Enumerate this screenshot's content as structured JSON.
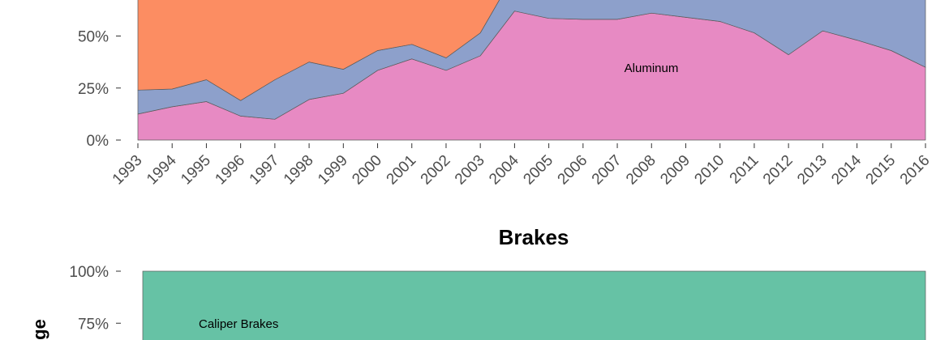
{
  "chart_data": [
    {
      "type": "area",
      "stacked": true,
      "percent": true,
      "title": "",
      "x": [
        1993,
        1994,
        1995,
        1996,
        1997,
        1998,
        1999,
        2000,
        2001,
        2002,
        2003,
        2004,
        2005,
        2006,
        2007,
        2008,
        2009,
        2010,
        2011,
        2012,
        2013,
        2014,
        2015,
        2016
      ],
      "y_tick_labels": [
        "0%",
        "25%",
        "50%"
      ],
      "series": [
        {
          "key": "aluminum",
          "name": "Aluminum",
          "color": "#e78ac3",
          "values": [
            0.125,
            0.16,
            0.185,
            0.115,
            0.1,
            0.195,
            0.225,
            0.335,
            0.39,
            0.335,
            0.405,
            0.62,
            0.585,
            0.58,
            0.58,
            0.61,
            0.59,
            0.57,
            0.515,
            0.41,
            0.525,
            0.48,
            0.43,
            0.35
          ]
        },
        {
          "key": "blue",
          "color": "#8da0cb",
          "values": [
            0.115,
            0.085,
            0.105,
            0.075,
            0.19,
            0.18,
            0.115,
            0.095,
            0.07,
            0.06,
            0.11,
            0.18,
            0.2,
            0.22,
            0.22,
            0.19,
            0.21,
            0.23,
            0.29,
            0.39,
            0.28,
            0.33,
            0.39,
            0.47
          ]
        },
        {
          "key": "orange",
          "color": "#fc8d62",
          "values": [
            0.76,
            0.755,
            0.71,
            0.81,
            0.71,
            0.625,
            0.66,
            0.57,
            0.54,
            0.605,
            0.485,
            0.2,
            0.215,
            0.2,
            0.2,
            0.2,
            0.2,
            0.2,
            0.195,
            0.2,
            0.195,
            0.19,
            0.18,
            0.18
          ]
        }
      ]
    },
    {
      "type": "area",
      "stacked": true,
      "percent": true,
      "title": "Brakes",
      "ylabel": "ge",
      "y_tick_labels": [
        "100%",
        "75%"
      ],
      "series": [
        {
          "key": "caliper",
          "name": "Caliper Brakes",
          "color": "#66c2a5",
          "values": [
            1.0,
            1.0
          ]
        }
      ]
    }
  ]
}
